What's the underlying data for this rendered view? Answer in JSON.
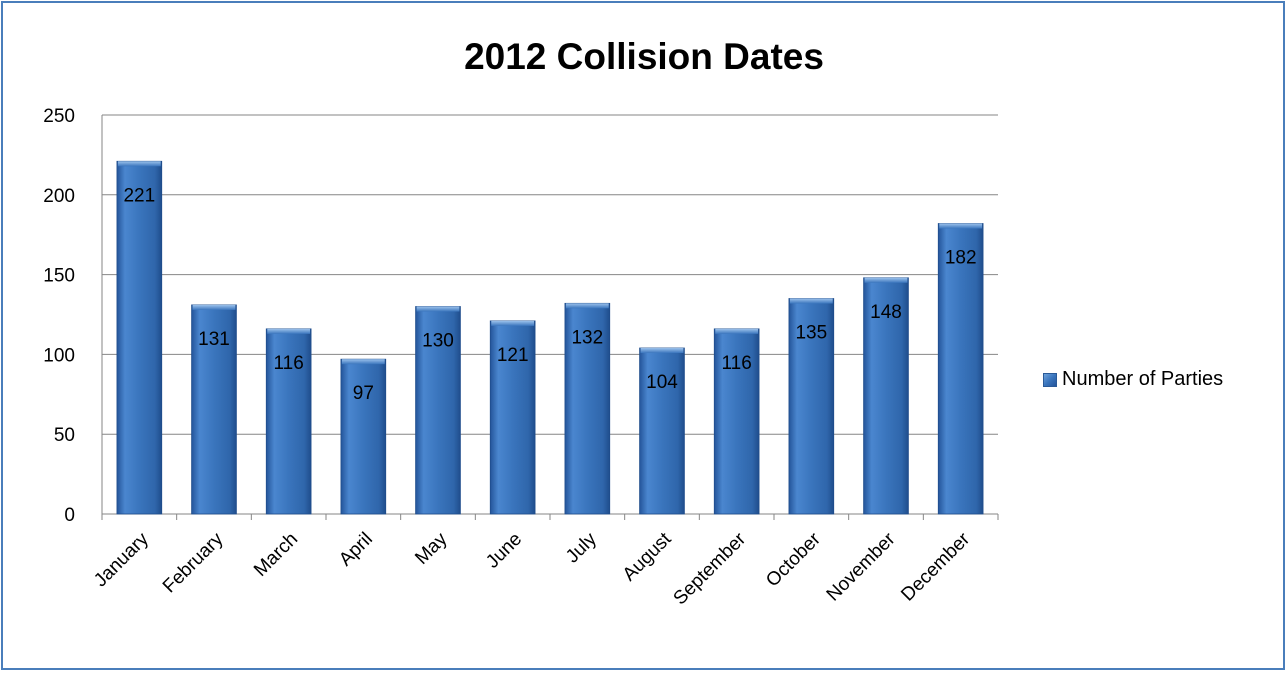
{
  "chart_data": {
    "type": "bar",
    "title": "2012 Collision Dates",
    "xlabel": "",
    "ylabel": "",
    "categories": [
      "January",
      "February",
      "March",
      "April",
      "May",
      "June",
      "July",
      "August",
      "September",
      "October",
      "November",
      "December"
    ],
    "series": [
      {
        "name": "Number of Parties",
        "values": [
          221,
          131,
          116,
          97,
          130,
          121,
          132,
          104,
          116,
          135,
          148,
          182
        ]
      }
    ],
    "ylim": [
      0,
      250
    ],
    "yticks": [
      0,
      50,
      100,
      150,
      200,
      250
    ],
    "grid": true,
    "legend_position": "right",
    "colors": {
      "bar": "#3a75bd",
      "bar_dark": "#24559a",
      "bar_light": "#6fa3dc",
      "grid": "#868686",
      "border": "#4a7ebb"
    }
  }
}
